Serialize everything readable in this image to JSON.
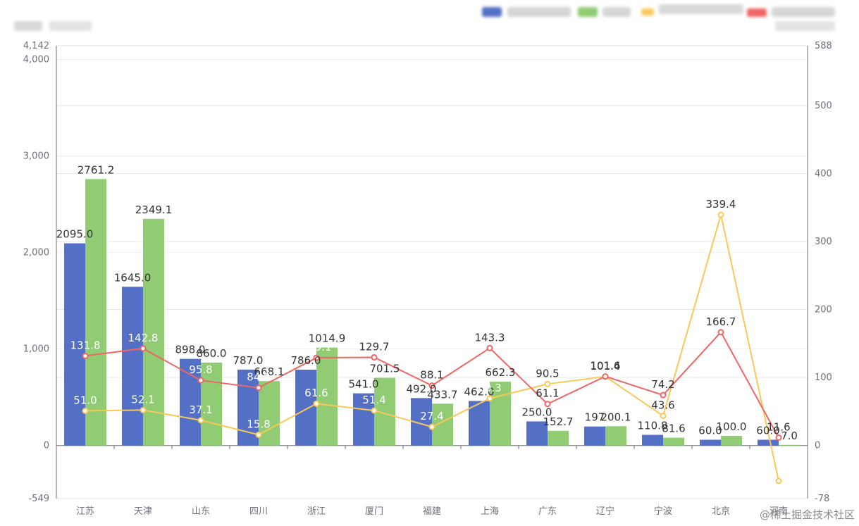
{
  "chart_data": {
    "type": "bar",
    "categories": [
      "江苏",
      "天津",
      "山东",
      "四川",
      "浙江",
      "厦门",
      "福建",
      "上海",
      "广东",
      "辽宁",
      "宁波",
      "北京",
      "河南"
    ],
    "series": [
      {
        "kind": "bar",
        "axis": "left",
        "color": "#5470c6",
        "values": [
          2095.0,
          1645.0,
          898.0,
          787.0,
          786.0,
          541.0,
          492.0,
          462.0,
          250.0,
          197.0,
          110.8,
          60.0,
          60.0
        ]
      },
      {
        "kind": "bar",
        "axis": "left",
        "color": "#91cc75",
        "values": [
          2761.2,
          2349.1,
          860.0,
          668.1,
          1014.9,
          701.5,
          433.7,
          662.3,
          152.7,
          200.1,
          81.6,
          100.0,
          7.0
        ]
      },
      {
        "kind": "line",
        "axis": "right",
        "color": "#fac858",
        "values": [
          51.0,
          52.1,
          37.1,
          15.8,
          61.6,
          51.4,
          27.4,
          69.3,
          90.5,
          101.4,
          43.6,
          339.4,
          -52.1
        ]
      },
      {
        "kind": "line",
        "axis": "right",
        "color": "#ee6666",
        "values": [
          131.8,
          142.8,
          95.8,
          84.9,
          129.1,
          129.7,
          88.1,
          143.3,
          61.1,
          101.6,
          74.2,
          166.7,
          11.6
        ]
      }
    ],
    "y_left": {
      "min": -549,
      "max": 4142,
      "ticks": [
        0,
        1000,
        2000,
        3000,
        4000
      ],
      "extra_labels": [
        -549,
        4142
      ]
    },
    "y_right": {
      "min": -78,
      "max": 588,
      "ticks": [
        0,
        100,
        200,
        300,
        400,
        500
      ],
      "extra_labels": [
        -78,
        588
      ]
    },
    "bar_labels": [
      [
        "2095.0",
        "1645.0",
        "898.0",
        "787.0",
        "786.0",
        "541.0",
        "492.0",
        "462.0",
        "250.0",
        "197",
        "110.8",
        "60.0",
        "60.0"
      ],
      [
        "2761.2",
        "2349.1",
        "860.0",
        "668.1",
        "1014.9",
        "701.5",
        "433.7",
        "662.3",
        "152.7",
        "200.1",
        "81.6",
        "100.0",
        "7.0"
      ]
    ],
    "line_labels": [
      [
        "51.0",
        "52.1",
        "37.1",
        "15.8",
        "61.6",
        "51.4",
        "27.4",
        "69.3",
        "90.5",
        "101.4",
        "43.6",
        "339.4",
        "-52.1"
      ],
      [
        "131.8",
        "142.8",
        "95.8",
        "84.9",
        "129.1",
        "129.7",
        "88.1",
        "143.3",
        "61.1",
        "101.6",
        "74.2",
        "166.7",
        "11.6"
      ]
    ],
    "grid": true,
    "legend_position": "top-right"
  },
  "watermark": "@稀土掘金技术社区"
}
